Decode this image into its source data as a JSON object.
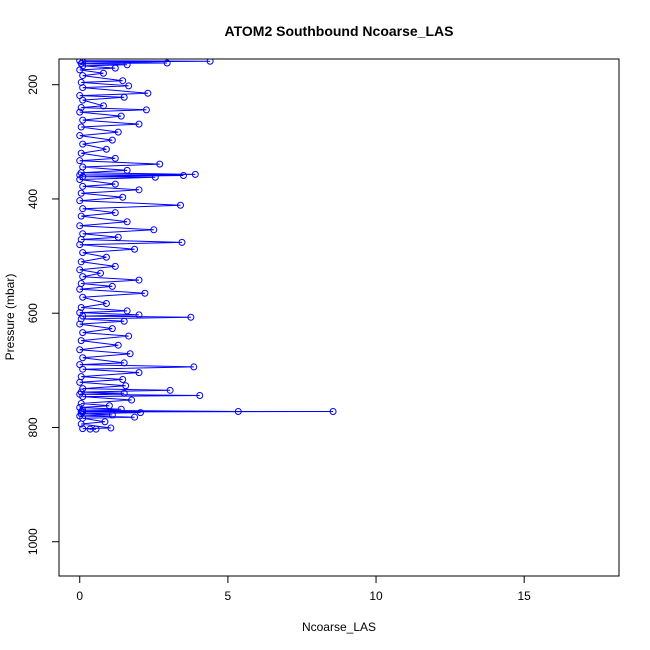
{
  "chart_data": {
    "type": "line",
    "title": "ATOM2 Southbound Ncoarse_LAS",
    "xlabel": "Ncoarse_LAS",
    "ylabel": "Pressure (mbar)",
    "xlim": [
      -0.7,
      18.2
    ],
    "ylim": [
      1060,
      155
    ],
    "y_axis_reversed": true,
    "x_ticks": [
      0,
      5,
      10,
      15
    ],
    "y_ticks": [
      200,
      400,
      600,
      800,
      1000
    ],
    "grid": false,
    "legend": "none",
    "series": [
      {
        "marker": "open-circle",
        "color": "#0000ff",
        "points": [
          [
            0.0,
            158
          ],
          [
            4.4,
            159
          ],
          [
            0.1,
            160
          ],
          [
            2.95,
            162
          ],
          [
            0.05,
            163
          ],
          [
            1.6,
            165
          ],
          [
            0.1,
            167
          ],
          [
            1.2,
            171
          ],
          [
            0.0,
            174
          ],
          [
            0.8,
            180
          ],
          [
            0.1,
            184
          ],
          [
            1.45,
            193
          ],
          [
            0.05,
            196
          ],
          [
            1.65,
            202
          ],
          [
            0.1,
            205
          ],
          [
            2.3,
            215
          ],
          [
            0.0,
            219
          ],
          [
            1.5,
            222
          ],
          [
            0.1,
            227
          ],
          [
            0.8,
            237
          ],
          [
            0.05,
            240
          ],
          [
            2.25,
            244
          ],
          [
            0.0,
            248
          ],
          [
            1.4,
            255
          ],
          [
            0.1,
            262
          ],
          [
            2.0,
            269
          ],
          [
            0.05,
            274
          ],
          [
            1.3,
            283
          ],
          [
            0.0,
            289
          ],
          [
            1.1,
            297
          ],
          [
            0.1,
            304
          ],
          [
            0.9,
            313
          ],
          [
            0.05,
            320
          ],
          [
            1.2,
            329
          ],
          [
            0.0,
            333
          ],
          [
            2.7,
            339
          ],
          [
            0.1,
            344
          ],
          [
            1.6,
            350
          ],
          [
            0.05,
            354
          ],
          [
            3.9,
            357
          ],
          [
            0.0,
            358
          ],
          [
            3.5,
            359
          ],
          [
            0.1,
            361
          ],
          [
            2.55,
            362
          ],
          [
            0.0,
            366
          ],
          [
            1.2,
            374
          ],
          [
            0.1,
            378
          ],
          [
            2.0,
            384
          ],
          [
            0.05,
            390
          ],
          [
            1.45,
            397
          ],
          [
            0.0,
            403
          ],
          [
            3.4,
            411
          ],
          [
            0.1,
            417
          ],
          [
            1.2,
            424
          ],
          [
            0.05,
            430
          ],
          [
            1.6,
            440
          ],
          [
            0.0,
            447
          ],
          [
            2.5,
            454
          ],
          [
            0.1,
            461
          ],
          [
            1.3,
            467
          ],
          [
            0.05,
            471
          ],
          [
            3.45,
            476
          ],
          [
            0.0,
            480
          ],
          [
            1.85,
            488
          ],
          [
            0.1,
            494
          ],
          [
            0.9,
            502
          ],
          [
            0.05,
            510
          ],
          [
            1.2,
            518
          ],
          [
            0.0,
            524
          ],
          [
            0.7,
            530
          ],
          [
            0.1,
            536
          ],
          [
            2.0,
            542
          ],
          [
            0.05,
            548
          ],
          [
            1.1,
            553
          ],
          [
            0.0,
            558
          ],
          [
            2.2,
            565
          ],
          [
            0.1,
            572
          ],
          [
            0.9,
            583
          ],
          [
            0.05,
            590
          ],
          [
            1.6,
            596
          ],
          [
            0.0,
            599
          ],
          [
            2.0,
            603
          ],
          [
            0.1,
            605
          ],
          [
            3.75,
            607
          ],
          [
            0.05,
            610
          ],
          [
            1.5,
            614
          ],
          [
            0.0,
            619
          ],
          [
            1.1,
            627
          ],
          [
            0.1,
            634
          ],
          [
            1.65,
            640
          ],
          [
            0.05,
            648
          ],
          [
            1.3,
            656
          ],
          [
            0.0,
            664
          ],
          [
            1.7,
            671
          ],
          [
            0.1,
            678
          ],
          [
            1.5,
            687
          ],
          [
            0.0,
            690
          ],
          [
            3.85,
            694
          ],
          [
            0.1,
            698
          ],
          [
            2.0,
            704
          ],
          [
            0.05,
            711
          ],
          [
            1.45,
            716
          ],
          [
            0.0,
            721
          ],
          [
            1.55,
            727
          ],
          [
            0.1,
            732
          ],
          [
            3.05,
            735
          ],
          [
            0.05,
            738
          ],
          [
            1.5,
            740
          ],
          [
            0.0,
            742
          ],
          [
            4.05,
            744
          ],
          [
            0.1,
            746
          ],
          [
            1.75,
            752
          ],
          [
            0.05,
            758
          ],
          [
            1.0,
            762
          ],
          [
            0.0,
            765
          ],
          [
            1.4,
            768
          ],
          [
            0.1,
            770
          ],
          [
            5.35,
            772
          ],
          [
            0.05,
            772
          ],
          [
            8.55,
            772
          ],
          [
            0.1,
            773
          ],
          [
            2.05,
            774
          ],
          [
            0.05,
            776
          ],
          [
            1.1,
            778
          ],
          [
            0.0,
            780
          ],
          [
            1.85,
            782
          ],
          [
            0.1,
            784
          ],
          [
            0.85,
            790
          ],
          [
            0.05,
            794
          ],
          [
            1.05,
            801
          ],
          [
            0.1,
            802
          ],
          [
            0.55,
            803
          ],
          [
            0.35,
            803
          ]
        ]
      }
    ]
  }
}
